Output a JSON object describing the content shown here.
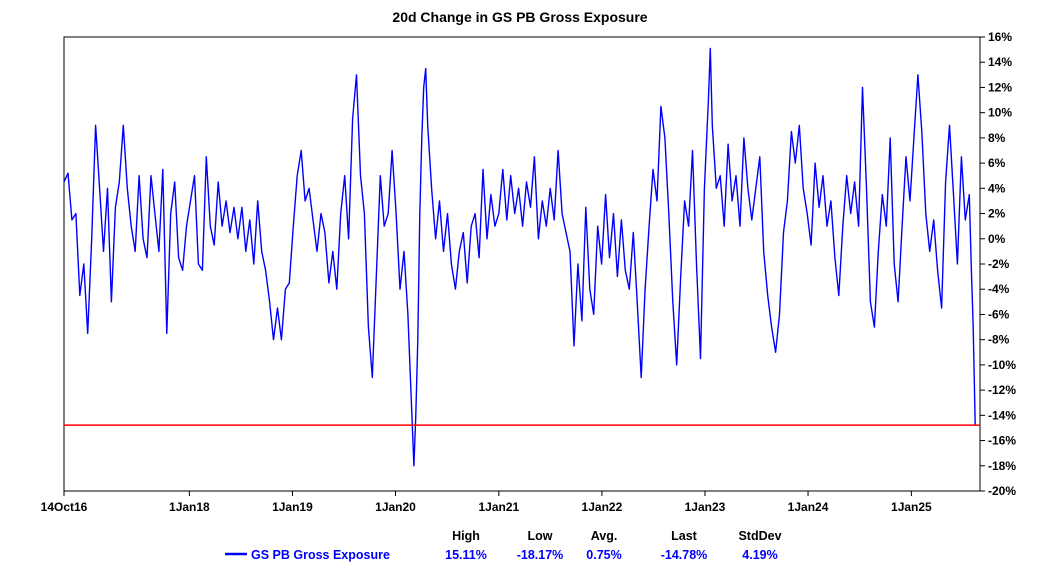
{
  "chart_data": {
    "type": "line",
    "title": "20d Change in GS PB Gross Exposure",
    "xlabel": "",
    "ylabel": "",
    "x_tick_labels": [
      "14Oct16",
      "1Jan18",
      "1Jan19",
      "1Jan20",
      "1Jan21",
      "1Jan22",
      "1Jan23",
      "1Jan24",
      "1Jan25"
    ],
    "y_tick_labels": [
      "16%",
      "14%",
      "12%",
      "10%",
      "8%",
      "6%",
      "4%",
      "2%",
      "0%",
      "-2%",
      "-4%",
      "-6%",
      "-8%",
      "-10%",
      "-12%",
      "-14%",
      "-16%",
      "-18%",
      "-20%"
    ],
    "ylim": [
      -20,
      16
    ],
    "xlim": [
      "2016-10-14",
      "2025-09-01"
    ],
    "y_axis_side": "right",
    "grid": false,
    "series": [
      {
        "name": "GS PB Gross Exposure",
        "color": "#0000ff",
        "points": [
          [
            "2016-10-14",
            4.5
          ],
          [
            "2016-10-28",
            5.2
          ],
          [
            "2016-11-11",
            1.5
          ],
          [
            "2016-11-25",
            2.0
          ],
          [
            "2016-12-09",
            -4.5
          ],
          [
            "2016-12-23",
            -2.0
          ],
          [
            "2017-01-06",
            -7.5
          ],
          [
            "2017-01-20",
            0.0
          ],
          [
            "2017-02-03",
            9.0
          ],
          [
            "2017-02-17",
            4.0
          ],
          [
            "2017-03-03",
            -1.0
          ],
          [
            "2017-03-17",
            4.0
          ],
          [
            "2017-03-31",
            -5.0
          ],
          [
            "2017-04-14",
            2.5
          ],
          [
            "2017-04-28",
            4.5
          ],
          [
            "2017-05-12",
            9.0
          ],
          [
            "2017-05-26",
            4.0
          ],
          [
            "2017-06-09",
            1.0
          ],
          [
            "2017-06-23",
            -1.0
          ],
          [
            "2017-07-07",
            5.0
          ],
          [
            "2017-07-21",
            0.0
          ],
          [
            "2017-08-04",
            -1.5
          ],
          [
            "2017-08-18",
            5.0
          ],
          [
            "2017-09-01",
            2.0
          ],
          [
            "2017-09-15",
            -1.0
          ],
          [
            "2017-09-29",
            5.5
          ],
          [
            "2017-10-13",
            -7.5
          ],
          [
            "2017-10-27",
            2.0
          ],
          [
            "2017-11-10",
            4.5
          ],
          [
            "2017-11-24",
            -1.5
          ],
          [
            "2017-12-08",
            -2.5
          ],
          [
            "2017-12-22",
            1.0
          ],
          [
            "2018-01-05",
            3.0
          ],
          [
            "2018-01-19",
            5.0
          ],
          [
            "2018-02-02",
            -2.0
          ],
          [
            "2018-02-16",
            -2.5
          ],
          [
            "2018-03-02",
            6.5
          ],
          [
            "2018-03-16",
            1.0
          ],
          [
            "2018-03-30",
            -0.5
          ],
          [
            "2018-04-13",
            4.5
          ],
          [
            "2018-04-27",
            1.0
          ],
          [
            "2018-05-11",
            3.0
          ],
          [
            "2018-05-25",
            0.5
          ],
          [
            "2018-06-08",
            2.5
          ],
          [
            "2018-06-22",
            0.0
          ],
          [
            "2018-07-06",
            2.5
          ],
          [
            "2018-07-20",
            -1.0
          ],
          [
            "2018-08-03",
            1.5
          ],
          [
            "2018-08-17",
            -2.0
          ],
          [
            "2018-08-31",
            3.0
          ],
          [
            "2018-09-14",
            -1.0
          ],
          [
            "2018-09-28",
            -2.5
          ],
          [
            "2018-10-12",
            -5.0
          ],
          [
            "2018-10-26",
            -8.0
          ],
          [
            "2018-11-09",
            -5.5
          ],
          [
            "2018-11-23",
            -8.0
          ],
          [
            "2018-12-07",
            -4.0
          ],
          [
            "2018-12-21",
            -3.5
          ],
          [
            "2019-01-04",
            1.0
          ],
          [
            "2019-01-18",
            5.0
          ],
          [
            "2019-02-01",
            7.0
          ],
          [
            "2019-02-15",
            3.0
          ],
          [
            "2019-03-01",
            4.0
          ],
          [
            "2019-03-15",
            1.5
          ],
          [
            "2019-03-29",
            -1.0
          ],
          [
            "2019-04-12",
            2.0
          ],
          [
            "2019-04-26",
            0.5
          ],
          [
            "2019-05-10",
            -3.5
          ],
          [
            "2019-05-24",
            -1.0
          ],
          [
            "2019-06-07",
            -4.0
          ],
          [
            "2019-06-21",
            2.0
          ],
          [
            "2019-07-05",
            5.0
          ],
          [
            "2019-07-19",
            0.0
          ],
          [
            "2019-08-02",
            9.5
          ],
          [
            "2019-08-16",
            13.0
          ],
          [
            "2019-08-30",
            5.0
          ],
          [
            "2019-09-13",
            2.0
          ],
          [
            "2019-09-27",
            -7.0
          ],
          [
            "2019-10-11",
            -11.0
          ],
          [
            "2019-10-25",
            -3.0
          ],
          [
            "2019-11-08",
            5.0
          ],
          [
            "2019-11-22",
            1.0
          ],
          [
            "2019-12-06",
            2.0
          ],
          [
            "2019-12-20",
            7.0
          ],
          [
            "2020-01-03",
            2.0
          ],
          [
            "2020-01-17",
            -4.0
          ],
          [
            "2020-01-31",
            -1.0
          ],
          [
            "2020-02-14",
            -6.0
          ],
          [
            "2020-02-28",
            -14.0
          ],
          [
            "2020-03-06",
            -18.0
          ],
          [
            "2020-03-13",
            -14.0
          ],
          [
            "2020-03-20",
            -8.0
          ],
          [
            "2020-03-27",
            2.0
          ],
          [
            "2020-04-03",
            8.0
          ],
          [
            "2020-04-10",
            12.0
          ],
          [
            "2020-04-17",
            13.5
          ],
          [
            "2020-04-24",
            9.0
          ],
          [
            "2020-05-08",
            4.0
          ],
          [
            "2020-05-22",
            0.0
          ],
          [
            "2020-06-05",
            3.0
          ],
          [
            "2020-06-19",
            -1.0
          ],
          [
            "2020-07-03",
            2.0
          ],
          [
            "2020-07-17",
            -2.0
          ],
          [
            "2020-07-31",
            -4.0
          ],
          [
            "2020-08-14",
            -1.0
          ],
          [
            "2020-08-28",
            0.5
          ],
          [
            "2020-09-11",
            -3.5
          ],
          [
            "2020-09-25",
            1.0
          ],
          [
            "2020-10-09",
            2.0
          ],
          [
            "2020-10-23",
            -1.5
          ],
          [
            "2020-11-06",
            5.5
          ],
          [
            "2020-11-20",
            0.0
          ],
          [
            "2020-12-04",
            3.5
          ],
          [
            "2020-12-18",
            1.0
          ],
          [
            "2021-01-01",
            2.0
          ],
          [
            "2021-01-15",
            5.5
          ],
          [
            "2021-01-29",
            1.5
          ],
          [
            "2021-02-12",
            5.0
          ],
          [
            "2021-02-26",
            2.0
          ],
          [
            "2021-03-12",
            4.0
          ],
          [
            "2021-03-26",
            1.0
          ],
          [
            "2021-04-09",
            4.5
          ],
          [
            "2021-04-23",
            2.5
          ],
          [
            "2021-05-07",
            6.5
          ],
          [
            "2021-05-21",
            0.0
          ],
          [
            "2021-06-04",
            3.0
          ],
          [
            "2021-06-18",
            1.0
          ],
          [
            "2021-07-02",
            4.0
          ],
          [
            "2021-07-16",
            1.5
          ],
          [
            "2021-07-30",
            7.0
          ],
          [
            "2021-08-13",
            2.0
          ],
          [
            "2021-08-27",
            0.5
          ],
          [
            "2021-09-10",
            -1.0
          ],
          [
            "2021-09-24",
            -8.5
          ],
          [
            "2021-10-08",
            -2.0
          ],
          [
            "2021-10-22",
            -6.5
          ],
          [
            "2021-11-05",
            2.5
          ],
          [
            "2021-11-19",
            -4.0
          ],
          [
            "2021-12-03",
            -6.0
          ],
          [
            "2021-12-17",
            1.0
          ],
          [
            "2021-12-31",
            -2.0
          ],
          [
            "2022-01-14",
            3.5
          ],
          [
            "2022-01-28",
            -1.5
          ],
          [
            "2022-02-11",
            2.0
          ],
          [
            "2022-02-25",
            -3.0
          ],
          [
            "2022-03-11",
            1.5
          ],
          [
            "2022-03-25",
            -2.5
          ],
          [
            "2022-04-08",
            -4.0
          ],
          [
            "2022-04-22",
            0.5
          ],
          [
            "2022-05-06",
            -5.0
          ],
          [
            "2022-05-20",
            -11.0
          ],
          [
            "2022-06-03",
            -4.0
          ],
          [
            "2022-06-17",
            1.0
          ],
          [
            "2022-07-01",
            5.5
          ],
          [
            "2022-07-15",
            3.0
          ],
          [
            "2022-07-29",
            10.5
          ],
          [
            "2022-08-12",
            8.0
          ],
          [
            "2022-08-26",
            2.0
          ],
          [
            "2022-09-09",
            -5.0
          ],
          [
            "2022-09-23",
            -10.0
          ],
          [
            "2022-10-07",
            -3.0
          ],
          [
            "2022-10-21",
            3.0
          ],
          [
            "2022-11-04",
            1.0
          ],
          [
            "2022-11-18",
            7.0
          ],
          [
            "2022-12-02",
            -2.0
          ],
          [
            "2022-12-16",
            -9.5
          ],
          [
            "2022-12-30",
            4.0
          ],
          [
            "2023-01-13",
            11.0
          ],
          [
            "2023-01-20",
            15.1
          ],
          [
            "2023-01-27",
            9.0
          ],
          [
            "2023-02-10",
            4.0
          ],
          [
            "2023-02-24",
            5.0
          ],
          [
            "2023-03-10",
            1.0
          ],
          [
            "2023-03-24",
            7.5
          ],
          [
            "2023-04-07",
            3.0
          ],
          [
            "2023-04-21",
            5.0
          ],
          [
            "2023-05-05",
            1.0
          ],
          [
            "2023-05-19",
            8.0
          ],
          [
            "2023-06-02",
            4.0
          ],
          [
            "2023-06-16",
            1.5
          ],
          [
            "2023-06-30",
            4.0
          ],
          [
            "2023-07-14",
            6.5
          ],
          [
            "2023-07-28",
            -1.0
          ],
          [
            "2023-08-11",
            -4.5
          ],
          [
            "2023-08-25",
            -7.0
          ],
          [
            "2023-09-08",
            -9.0
          ],
          [
            "2023-09-22",
            -6.0
          ],
          [
            "2023-10-06",
            0.5
          ],
          [
            "2023-10-20",
            3.0
          ],
          [
            "2023-11-03",
            8.5
          ],
          [
            "2023-11-17",
            6.0
          ],
          [
            "2023-12-01",
            9.0
          ],
          [
            "2023-12-15",
            4.0
          ],
          [
            "2023-12-29",
            2.0
          ],
          [
            "2024-01-12",
            -0.5
          ],
          [
            "2024-01-26",
            6.0
          ],
          [
            "2024-02-09",
            2.5
          ],
          [
            "2024-02-23",
            5.0
          ],
          [
            "2024-03-08",
            1.0
          ],
          [
            "2024-03-22",
            3.0
          ],
          [
            "2024-04-05",
            -1.5
          ],
          [
            "2024-04-19",
            -4.5
          ],
          [
            "2024-05-03",
            1.0
          ],
          [
            "2024-05-17",
            5.0
          ],
          [
            "2024-05-31",
            2.0
          ],
          [
            "2024-06-14",
            4.5
          ],
          [
            "2024-06-28",
            1.0
          ],
          [
            "2024-07-12",
            12.0
          ],
          [
            "2024-07-26",
            4.0
          ],
          [
            "2024-08-09",
            -5.0
          ],
          [
            "2024-08-23",
            -7.0
          ],
          [
            "2024-09-06",
            -1.0
          ],
          [
            "2024-09-20",
            3.5
          ],
          [
            "2024-10-04",
            1.0
          ],
          [
            "2024-10-18",
            8.0
          ],
          [
            "2024-11-01",
            -2.0
          ],
          [
            "2024-11-15",
            -5.0
          ],
          [
            "2024-11-29",
            1.0
          ],
          [
            "2024-12-13",
            6.5
          ],
          [
            "2024-12-27",
            3.0
          ],
          [
            "2025-01-10",
            8.0
          ],
          [
            "2025-01-24",
            13.0
          ],
          [
            "2025-02-07",
            8.5
          ],
          [
            "2025-02-21",
            2.0
          ],
          [
            "2025-03-07",
            -1.0
          ],
          [
            "2025-03-21",
            1.5
          ],
          [
            "2025-04-04",
            -2.5
          ],
          [
            "2025-04-18",
            -5.5
          ],
          [
            "2025-05-02",
            4.5
          ],
          [
            "2025-05-16",
            9.0
          ],
          [
            "2025-05-30",
            3.5
          ],
          [
            "2025-06-13",
            -2.0
          ],
          [
            "2025-06-27",
            6.5
          ],
          [
            "2025-07-11",
            1.5
          ],
          [
            "2025-07-25",
            3.5
          ],
          [
            "2025-08-01",
            -2.0
          ],
          [
            "2025-08-08",
            -7.0
          ],
          [
            "2025-08-15",
            -14.78
          ]
        ]
      }
    ],
    "reference_line": {
      "y": -14.78,
      "color": "#ff0000"
    },
    "legend": {
      "placement": "bottom",
      "series_label": "GS PB Gross Exposure",
      "headers": [
        "High",
        "Low",
        "Avg.",
        "Last",
        "StdDev"
      ],
      "values": [
        "15.11%",
        "-18.17%",
        "0.75%",
        "-14.78%",
        "4.19%"
      ]
    }
  }
}
